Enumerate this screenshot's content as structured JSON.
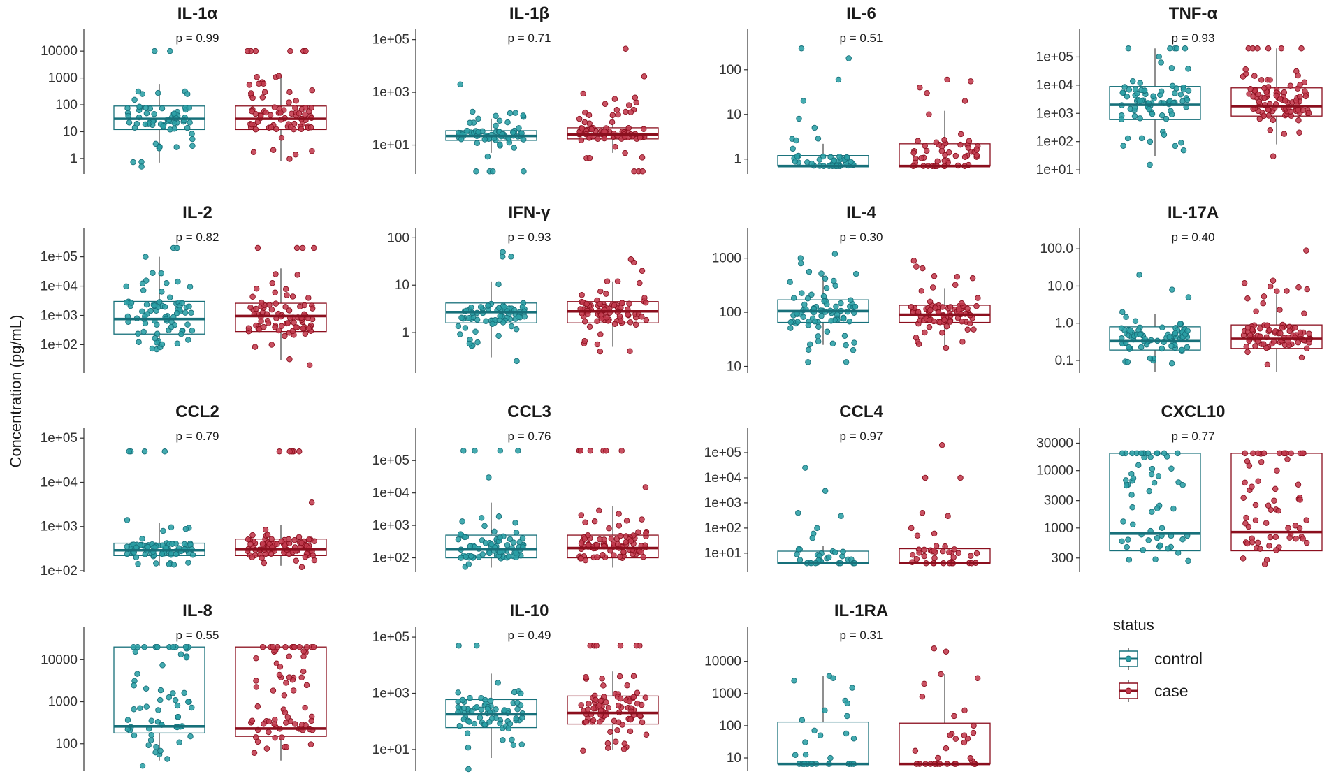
{
  "chart_data": {
    "type": "boxplot",
    "ylabel": "Concentration (pg/mL)",
    "legend": {
      "title": "status",
      "position": "bottom-right",
      "items": [
        {
          "label": "control",
          "color": "#1F8A8E",
          "line": "#17707A"
        },
        {
          "label": "case",
          "color": "#B0283A",
          "line": "#8B0F1E"
        }
      ]
    },
    "groups": [
      "control",
      "case"
    ],
    "panels": [
      {
        "title": "IL-1α",
        "p": "p = 0.99",
        "ymin": 0.3,
        "ymax": 40000,
        "ticks": [
          {
            "v": 1,
            "l": "1"
          },
          {
            "v": 10,
            "l": "10"
          },
          {
            "v": 100,
            "l": "100"
          },
          {
            "v": 1000,
            "l": "1000"
          },
          {
            "v": 10000,
            "l": "10000"
          }
        ],
        "boxes": [
          {
            "q1": 12,
            "med": 30,
            "q3": 90,
            "lo": 0.7,
            "hi": 600,
            "pmin": 0.5,
            "pmax": 600,
            "ext": [
              0.5,
              10000,
              10000
            ],
            "n": 65
          },
          {
            "q1": 12,
            "med": 30,
            "q3": 90,
            "lo": 0.8,
            "hi": 1300,
            "pmin": 0.8,
            "pmax": 1300,
            "ext": [
              10000,
              10000,
              10000,
              10000,
              10000,
              10000
            ],
            "n": 75
          }
        ]
      },
      {
        "title": "IL-1β",
        "p": "p = 0.71",
        "ymin": 0.9,
        "ymax": 150000,
        "ticks": [
          {
            "v": 10,
            "l": "1e+01"
          },
          {
            "v": 1000,
            "l": "1e+03"
          },
          {
            "v": 100000,
            "l": "1e+05"
          }
        ],
        "boxes": [
          {
            "q1": 15,
            "med": 22,
            "q3": 35,
            "lo": 5,
            "hi": 100,
            "pmin": 3,
            "pmax": 300,
            "ext": [
              2000,
              1,
              1,
              1,
              1
            ],
            "n": 70
          },
          {
            "q1": 17,
            "med": 25,
            "q3": 45,
            "lo": 5,
            "hi": 150,
            "pmin": 3,
            "pmax": 900,
            "ext": [
              45000,
              4000,
              1,
              1,
              1
            ],
            "n": 80
          }
        ]
      },
      {
        "title": "IL-6",
        "p": "p = 0.51",
        "ymin": 0.5,
        "ymax": 600,
        "ticks": [
          {
            "v": 1,
            "l": "1"
          },
          {
            "v": 10,
            "l": "10"
          },
          {
            "v": 100,
            "l": "100"
          }
        ],
        "boxes": [
          {
            "q1": 0.7,
            "med": 0.7,
            "q3": 1.2,
            "lo": 0.7,
            "hi": 2.2,
            "pmin": 0.7,
            "pmax": 3.5,
            "ext": [
              0.7,
              0.7,
              0.7,
              0.7,
              0.7,
              0.7,
              0.7,
              300,
              180,
              60,
              20,
              5,
              8
            ],
            "n": 35
          },
          {
            "q1": 0.7,
            "med": 0.7,
            "q3": 2.2,
            "lo": 0.7,
            "hi": 12,
            "pmin": 0.7,
            "pmax": 4,
            "ext": [
              0.7,
              0.7,
              0.7,
              0.7,
              0.7,
              0.7,
              0.7,
              0.7,
              60,
              55,
              40,
              30,
              20,
              10
            ],
            "n": 40
          }
        ]
      },
      {
        "title": "TNF-α",
        "p": "p = 0.93",
        "ymin": 8,
        "ymax": 600000,
        "ticks": [
          {
            "v": 10,
            "l": "1e+01"
          },
          {
            "v": 100,
            "l": "1e+02"
          },
          {
            "v": 1000,
            "l": "1e+03"
          },
          {
            "v": 10000,
            "l": "1e+04"
          },
          {
            "v": 100000,
            "l": "1e+05"
          }
        ],
        "boxes": [
          {
            "q1": 600,
            "med": 2000,
            "q3": 9000,
            "lo": 30,
            "hi": 200000,
            "pmin": 40,
            "pmax": 150000,
            "ext": [
              200000,
              200000,
              200000,
              200000,
              200000,
              15
            ],
            "n": 75
          },
          {
            "q1": 800,
            "med": 1800,
            "q3": 8000,
            "lo": 80,
            "hi": 200000,
            "pmin": 80,
            "pmax": 40000,
            "ext": [
              200000,
              200000,
              200000,
              200000,
              200000,
              200000,
              30
            ],
            "n": 90
          }
        ]
      },
      {
        "title": "IL-2",
        "p": "p = 0.82",
        "ymin": 12,
        "ymax": 600000,
        "ticks": [
          {
            "v": 100,
            "l": "1e+02"
          },
          {
            "v": 1000,
            "l": "1e+03"
          },
          {
            "v": 10000,
            "l": "1e+04"
          },
          {
            "v": 100000,
            "l": "1e+05"
          }
        ],
        "boxes": [
          {
            "q1": 230,
            "med": 750,
            "q3": 3000,
            "lo": 70,
            "hi": 100000,
            "pmin": 60,
            "pmax": 30000,
            "ext": [
              200000,
              200000,
              100000
            ],
            "n": 75
          },
          {
            "q1": 280,
            "med": 950,
            "q3": 2600,
            "lo": 30,
            "hi": 40000,
            "pmin": 30,
            "pmax": 30000,
            "ext": [
              200000,
              200000,
              200000,
              200000,
              20
            ],
            "n": 80
          }
        ]
      },
      {
        "title": "IFN-γ",
        "p": "p = 0.93",
        "ymin": 0.15,
        "ymax": 120,
        "ticks": [
          {
            "v": 1,
            "l": "1"
          },
          {
            "v": 10,
            "l": "10"
          },
          {
            "v": 100,
            "l": "100"
          }
        ],
        "boxes": [
          {
            "q1": 1.6,
            "med": 2.7,
            "q3": 4.2,
            "lo": 0.3,
            "hi": 12,
            "pmin": 0.3,
            "pmax": 15,
            "ext": [
              40,
              40,
              50,
              0.25
            ],
            "n": 70
          },
          {
            "q1": 1.6,
            "med": 2.8,
            "q3": 4.5,
            "lo": 0.5,
            "hi": 12,
            "pmin": 0.4,
            "pmax": 15,
            "ext": [
              30,
              35,
              20,
              0.4
            ],
            "n": 80
          }
        ]
      },
      {
        "title": "IL-4",
        "p": "p = 0.30",
        "ymin": 8,
        "ymax": 2800,
        "ticks": [
          {
            "v": 10,
            "l": "10"
          },
          {
            "v": 100,
            "l": "100"
          },
          {
            "v": 1000,
            "l": "1000"
          }
        ],
        "boxes": [
          {
            "q1": 65,
            "med": 105,
            "q3": 170,
            "lo": 25,
            "hi": 500,
            "pmin": 20,
            "pmax": 600,
            "ext": [
              12,
              12,
              1200,
              1000,
              800
            ],
            "n": 75
          },
          {
            "q1": 65,
            "med": 90,
            "q3": 135,
            "lo": 22,
            "hi": 280,
            "pmin": 20,
            "pmax": 500,
            "ext": [
              900,
              700,
              650
            ],
            "n": 85
          }
        ]
      },
      {
        "title": "IL-17A",
        "p": "p = 0.40",
        "ymin": 0.05,
        "ymax": 250,
        "ticks": [
          {
            "v": 0.1,
            "l": "0.1"
          },
          {
            "v": 1,
            "l": "1.0"
          },
          {
            "v": 10,
            "l": "10.0"
          },
          {
            "v": 100,
            "l": "100.0"
          }
        ],
        "boxes": [
          {
            "q1": 0.19,
            "med": 0.33,
            "q3": 0.8,
            "lo": 0.05,
            "hi": 1.8,
            "pmin": 0.08,
            "pmax": 2.5,
            "ext": [
              20,
              8,
              5
            ],
            "n": 75
          },
          {
            "q1": 0.21,
            "med": 0.38,
            "q3": 0.9,
            "lo": 0.05,
            "hi": 6,
            "pmin": 0.06,
            "pmax": 10,
            "ext": [
              90,
              14,
              12
            ],
            "n": 85
          }
        ]
      },
      {
        "title": "CCL2",
        "p": "p = 0.79",
        "ymin": 100,
        "ymax": 130000,
        "ticks": [
          {
            "v": 100,
            "l": "1e+02"
          },
          {
            "v": 1000,
            "l": "1e+03"
          },
          {
            "v": 10000,
            "l": "1e+04"
          },
          {
            "v": 100000,
            "l": "1e+05"
          }
        ],
        "boxes": [
          {
            "q1": 220,
            "med": 290,
            "q3": 420,
            "lo": 130,
            "hi": 1200,
            "pmin": 130,
            "pmax": 1000,
            "ext": [
              50000,
              50000,
              50000,
              50000,
              1400
            ],
            "n": 75
          },
          {
            "q1": 220,
            "med": 300,
            "q3": 520,
            "lo": 130,
            "hi": 1100,
            "pmin": 120,
            "pmax": 1000,
            "ext": [
              50000,
              50000,
              50000,
              50000,
              50000,
              3500
            ],
            "n": 85
          }
        ]
      },
      {
        "title": "CCL3",
        "p": "p = 0.76",
        "ymin": 40,
        "ymax": 700000,
        "ticks": [
          {
            "v": 100,
            "l": "1e+02"
          },
          {
            "v": 1000,
            "l": "1e+03"
          },
          {
            "v": 10000,
            "l": "1e+04"
          },
          {
            "v": 100000,
            "l": "1e+05"
          }
        ],
        "boxes": [
          {
            "q1": 100,
            "med": 180,
            "q3": 500,
            "lo": 50,
            "hi": 5000,
            "pmin": 50,
            "pmax": 3000,
            "ext": [
              200000,
              200000,
              200000,
              200000,
              30000
            ],
            "n": 75
          },
          {
            "q1": 100,
            "med": 200,
            "q3": 500,
            "lo": 50,
            "hi": 4000,
            "pmin": 50,
            "pmax": 3000,
            "ext": [
              200000,
              200000,
              200000,
              200000,
              200000,
              200000,
              15000
            ],
            "n": 85
          }
        ]
      },
      {
        "title": "CCL4",
        "p": "p = 0.97",
        "ymin": 2,
        "ymax": 600000,
        "ticks": [
          {
            "v": 10,
            "l": "1e+01"
          },
          {
            "v": 100,
            "l": "1e+02"
          },
          {
            "v": 1000,
            "l": "1e+03"
          },
          {
            "v": 10000,
            "l": "1e+04"
          },
          {
            "v": 100000,
            "l": "1e+05"
          }
        ],
        "boxes": [
          {
            "q1": 4,
            "med": 4,
            "q3": 12,
            "lo": 4,
            "hi": 20,
            "pmin": 4,
            "pmax": 15,
            "ext": [
              4,
              4,
              4,
              4,
              4,
              4,
              4,
              25000,
              3000,
              400,
              300,
              100,
              60,
              40
            ],
            "n": 20
          },
          {
            "q1": 4,
            "med": 4,
            "q3": 15,
            "lo": 4,
            "hi": 25,
            "pmin": 4,
            "pmax": 20,
            "ext": [
              4,
              4,
              4,
              4,
              4,
              4,
              4,
              4,
              200000,
              10000,
              10000,
              400,
              300,
              100,
              60,
              50
            ],
            "n": 25
          }
        ]
      },
      {
        "title": "CXCL10",
        "p": "p = 0.77",
        "ymin": 180,
        "ymax": 45000,
        "ticks": [
          {
            "v": 300,
            "l": "300"
          },
          {
            "v": 1000,
            "l": "1000"
          },
          {
            "v": 3000,
            "l": "3000"
          },
          {
            "v": 10000,
            "l": "10000"
          },
          {
            "v": 30000,
            "l": "30000"
          }
        ],
        "boxes": [
          {
            "q1": 400,
            "med": 800,
            "q3": 20000,
            "lo": 400,
            "hi": 20000,
            "pmin": 250,
            "pmax": 800,
            "ext": [
              20000,
              20000,
              20000,
              20000,
              20000,
              20000,
              20000,
              20000,
              20000,
              20000,
              20000,
              20000,
              1300,
              1000
            ],
            "n": 45
          },
          {
            "q1": 400,
            "med": 850,
            "q3": 20000,
            "lo": 400,
            "hi": 20000,
            "pmin": 200,
            "pmax": 800,
            "ext": [
              20000,
              20000,
              20000,
              20000,
              20000,
              20000,
              20000,
              20000,
              20000,
              20000,
              20000,
              20000,
              20000,
              1200,
              1000
            ],
            "n": 50
          }
        ]
      },
      {
        "title": "IL-8",
        "p": "p = 0.55",
        "ymin": 25,
        "ymax": 45000,
        "ticks": [
          {
            "v": 100,
            "l": "100"
          },
          {
            "v": 1000,
            "l": "1000"
          },
          {
            "v": 10000,
            "l": "10000"
          }
        ],
        "boxes": [
          {
            "q1": 180,
            "med": 260,
            "q3": 20000,
            "lo": 40,
            "hi": 20000,
            "pmin": 40,
            "pmax": 450,
            "ext": [
              20000,
              20000,
              20000,
              20000,
              20000,
              20000,
              20000,
              20000,
              20000,
              20000,
              30
            ],
            "n": 50
          },
          {
            "q1": 150,
            "med": 230,
            "q3": 20000,
            "lo": 40,
            "hi": 20000,
            "pmin": 50,
            "pmax": 450,
            "ext": [
              20000,
              20000,
              20000,
              20000,
              20000,
              20000,
              20000,
              20000,
              20000,
              20000,
              20000,
              20000
            ],
            "n": 60
          }
        ]
      },
      {
        "title": "IL-10",
        "p": "p = 0.49",
        "ymin": 2,
        "ymax": 150000,
        "ticks": [
          {
            "v": 10,
            "l": "1e+01"
          },
          {
            "v": 1000,
            "l": "1e+03"
          },
          {
            "v": 100000,
            "l": "1e+05"
          }
        ],
        "boxes": [
          {
            "q1": 60,
            "med": 180,
            "q3": 600,
            "lo": 5,
            "hi": 5000,
            "pmin": 8,
            "pmax": 3000,
            "ext": [
              50000,
              50000,
              2
            ],
            "n": 75
          },
          {
            "q1": 80,
            "med": 200,
            "q3": 800,
            "lo": 10,
            "hi": 6000,
            "pmin": 8,
            "pmax": 6000,
            "ext": [
              50000,
              50000,
              50000,
              50000,
              50000,
              50000
            ],
            "n": 85
          }
        ]
      },
      {
        "title": "IL-1RA",
        "p": "p = 0.31",
        "ymin": 4.5,
        "ymax": 80000,
        "ticks": [
          {
            "v": 10,
            "l": "10"
          },
          {
            "v": 100,
            "l": "100"
          },
          {
            "v": 1000,
            "l": "1000"
          },
          {
            "v": 10000,
            "l": "10000"
          }
        ],
        "boxes": [
          {
            "q1": 6.5,
            "med": 6.5,
            "q3": 130,
            "lo": 6.5,
            "hi": 3500,
            "pmin": 6.5,
            "pmax": 6.5,
            "ext": [
              6.5,
              6.5,
              6.5,
              6.5,
              6.5,
              6.5,
              6.5,
              6.5,
              6.5,
              6.5,
              3500,
              3000,
              2500,
              1500,
              600,
              500,
              300,
              200,
              150,
              50,
              40
            ],
            "n": 12
          },
          {
            "q1": 6.5,
            "med": 6.5,
            "q3": 120,
            "lo": 6.5,
            "hi": 4000,
            "pmin": 6.5,
            "pmax": 6.5,
            "ext": [
              6.5,
              6.5,
              6.5,
              6.5,
              6.5,
              6.5,
              6.5,
              6.5,
              6.5,
              6.5,
              6.5,
              25000,
              20000,
              4000,
              3000,
              2000,
              800,
              300,
              200,
              100,
              50,
              20,
              10
            ],
            "n": 12
          }
        ]
      }
    ]
  }
}
